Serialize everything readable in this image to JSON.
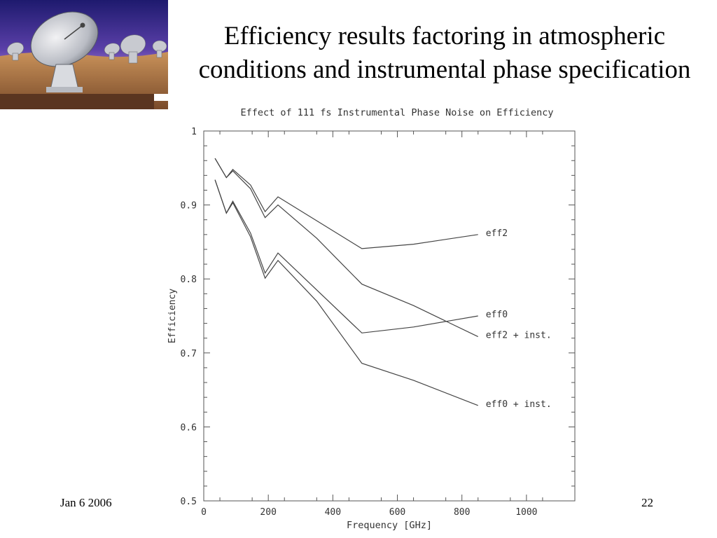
{
  "slide": {
    "title_line1": "Efficiency results factoring in atmospheric",
    "title_line2": "conditions and instrumental phase specification",
    "footer_date": "Jan 6 2006",
    "page_number": "22"
  },
  "chart_data": {
    "type": "line",
    "title": "Effect of 111 fs Instrumental Phase Noise on Efficiency",
    "xlabel": "Frequency [GHz]",
    "ylabel": "Efficiency",
    "xlim": [
      0,
      1150
    ],
    "ylim": [
      0.5,
      1.0
    ],
    "x_ticks": [
      0,
      200,
      400,
      600,
      800,
      1000
    ],
    "y_ticks": [
      0.5,
      0.6,
      0.7,
      0.8,
      0.9,
      1.0
    ],
    "x_tick_labels": [
      "0",
      "200",
      "400",
      "600",
      "800",
      "1000"
    ],
    "y_tick_labels": [
      "0.5",
      "0.6",
      "0.7",
      "0.8",
      "0.9",
      "1"
    ],
    "grid": false,
    "series": [
      {
        "name": "eff2",
        "x": [
          35,
          70,
          90,
          145,
          190,
          230,
          490,
          650,
          850
        ],
        "y": [
          0.963,
          0.937,
          0.948,
          0.927,
          0.891,
          0.911,
          0.841,
          0.847,
          0.86
        ]
      },
      {
        "name": "eff2 + inst.",
        "x": [
          35,
          70,
          90,
          145,
          190,
          230,
          350,
          490,
          650,
          850
        ],
        "y": [
          0.963,
          0.937,
          0.946,
          0.922,
          0.883,
          0.9,
          0.855,
          0.793,
          0.764,
          0.722
        ]
      },
      {
        "name": "eff0",
        "x": [
          35,
          70,
          90,
          145,
          190,
          230,
          490,
          650,
          850
        ],
        "y": [
          0.934,
          0.889,
          0.905,
          0.862,
          0.808,
          0.835,
          0.727,
          0.735,
          0.75
        ]
      },
      {
        "name": "eff0 + inst.",
        "x": [
          35,
          70,
          90,
          145,
          190,
          230,
          350,
          490,
          650,
          850
        ],
        "y": [
          0.934,
          0.889,
          0.903,
          0.857,
          0.801,
          0.825,
          0.77,
          0.686,
          0.663,
          0.629
        ]
      }
    ]
  }
}
